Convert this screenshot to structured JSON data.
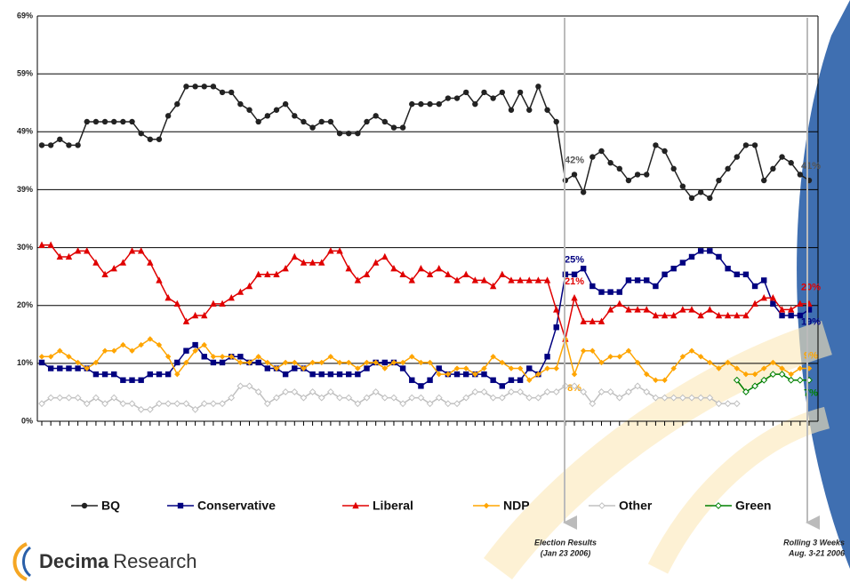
{
  "chart_data": {
    "type": "line",
    "categories": [
      null,
      null,
      null,
      null,
      null,
      null,
      null,
      null,
      null,
      null,
      null,
      null,
      null,
      null,
      null,
      null,
      null,
      null,
      null,
      null,
      null,
      null,
      null,
      null,
      null,
      null,
      null,
      null,
      null,
      null,
      null,
      null,
      null,
      null,
      null,
      null,
      null,
      null,
      null,
      null,
      null,
      null,
      null,
      null,
      null,
      null,
      null,
      null,
      null,
      null,
      null,
      null,
      null,
      null,
      null,
      null,
      null,
      null,
      null,
      null,
      null,
      null,
      null,
      null,
      null,
      null,
      null,
      null,
      null,
      null,
      null,
      null,
      null,
      null,
      null,
      null,
      null,
      null,
      null,
      null,
      null,
      null,
      null,
      null,
      null,
      null
    ],
    "ylim": [
      0,
      69
    ],
    "yticks": [
      {
        "value": 0,
        "label": "0%"
      },
      {
        "value": 9.857,
        "label": "10%"
      },
      {
        "value": 19.714,
        "label": "20%"
      },
      {
        "value": 29.571,
        "label": "30%"
      },
      {
        "value": 39.429,
        "label": "39%"
      },
      {
        "value": 49.286,
        "label": "49%"
      },
      {
        "value": 59.143,
        "label": "59%"
      },
      {
        "value": 69,
        "label": "69%"
      }
    ],
    "grid": true,
    "series": [
      {
        "name": "BQ",
        "color": "#222222",
        "marker": "circle",
        "values": [
          47,
          47,
          48,
          47,
          47,
          51,
          51,
          51,
          51,
          51,
          51,
          49,
          48,
          48,
          52,
          54,
          57,
          57,
          57,
          57,
          56,
          56,
          54,
          53,
          51,
          52,
          53,
          54,
          52,
          51,
          50,
          51,
          51,
          49,
          49,
          49,
          51,
          52,
          51,
          50,
          50,
          54,
          54,
          54,
          54,
          55,
          55,
          56,
          54,
          56,
          55,
          56,
          53,
          56,
          53,
          57,
          53,
          51,
          41,
          42,
          39,
          45,
          46,
          44,
          43,
          41,
          42,
          42,
          47,
          46,
          43,
          40,
          38,
          39,
          38,
          41,
          43,
          45,
          47,
          47,
          41,
          43,
          45,
          44,
          42,
          41
        ],
        "value_labels": [
          null,
          null,
          null,
          null,
          null,
          null,
          null,
          null,
          null,
          null,
          null,
          null,
          null,
          null,
          null,
          null,
          null,
          null,
          null,
          null,
          null,
          null,
          null,
          null,
          null,
          null,
          null,
          null,
          null,
          null,
          null,
          null,
          null,
          null,
          null,
          null,
          null,
          null,
          null,
          null,
          null,
          null,
          null,
          null,
          null,
          null,
          null,
          null,
          null,
          null,
          null,
          null,
          null,
          null,
          null,
          null,
          null,
          null,
          null,
          "42%",
          null,
          null,
          null,
          null,
          null,
          null,
          null,
          null,
          null,
          null,
          null,
          null,
          null,
          null,
          null,
          null,
          null,
          null,
          null,
          null,
          null,
          null,
          null,
          null,
          null,
          "41%"
        ]
      },
      {
        "name": "Conservative",
        "color": "#000080",
        "marker": "square",
        "values": [
          10,
          9,
          9,
          9,
          9,
          9,
          8,
          8,
          8,
          7,
          7,
          7,
          8,
          8,
          8,
          10,
          12,
          13,
          11,
          10,
          10,
          11,
          11,
          10,
          10,
          9,
          9,
          8,
          9,
          9,
          8,
          8,
          8,
          8,
          8,
          8,
          9,
          10,
          10,
          10,
          9,
          7,
          6,
          7,
          9,
          8,
          8,
          8,
          8,
          8,
          7,
          6,
          7,
          7,
          9,
          8,
          11,
          16,
          25,
          25,
          26,
          23,
          22,
          22,
          22,
          24,
          24,
          24,
          23,
          25,
          26,
          27,
          28,
          29,
          29,
          28,
          26,
          25,
          25,
          23,
          24,
          20,
          18,
          18,
          18,
          19
        ],
        "value_labels": [
          null,
          null,
          null,
          null,
          null,
          null,
          null,
          null,
          null,
          null,
          null,
          null,
          null,
          null,
          null,
          null,
          null,
          null,
          null,
          null,
          null,
          null,
          null,
          null,
          null,
          null,
          null,
          null,
          null,
          null,
          null,
          null,
          null,
          null,
          null,
          null,
          null,
          null,
          null,
          null,
          null,
          null,
          null,
          null,
          null,
          null,
          null,
          null,
          null,
          null,
          null,
          null,
          null,
          null,
          null,
          null,
          null,
          null,
          null,
          "25%",
          null,
          null,
          null,
          null,
          null,
          null,
          null,
          null,
          null,
          null,
          null,
          null,
          null,
          null,
          null,
          null,
          null,
          null,
          null,
          null,
          null,
          null,
          null,
          null,
          null,
          "19%"
        ]
      },
      {
        "name": "Liberal",
        "color": "#e00000",
        "marker": "triangle",
        "values": [
          30,
          30,
          28,
          28,
          29,
          29,
          27,
          25,
          26,
          27,
          29,
          29,
          27,
          24,
          21,
          20,
          17,
          18,
          18,
          20,
          20,
          21,
          22,
          23,
          25,
          25,
          25,
          26,
          28,
          27,
          27,
          27,
          29,
          29,
          26,
          24,
          25,
          27,
          28,
          26,
          25,
          24,
          26,
          25,
          26,
          25,
          24,
          25,
          24,
          24,
          23,
          25,
          24,
          24,
          24,
          24,
          24,
          19,
          14,
          21,
          17,
          17,
          17,
          19,
          20,
          19,
          19,
          19,
          18,
          18,
          18,
          19,
          19,
          18,
          19,
          18,
          18,
          18,
          18,
          20,
          21,
          21,
          19,
          19,
          20,
          20
        ],
        "value_labels": [
          null,
          null,
          null,
          null,
          null,
          null,
          null,
          null,
          null,
          null,
          null,
          null,
          null,
          null,
          null,
          null,
          null,
          null,
          null,
          null,
          null,
          null,
          null,
          null,
          null,
          null,
          null,
          null,
          null,
          null,
          null,
          null,
          null,
          null,
          null,
          null,
          null,
          null,
          null,
          null,
          null,
          null,
          null,
          null,
          null,
          null,
          null,
          null,
          null,
          null,
          null,
          null,
          null,
          null,
          null,
          null,
          null,
          null,
          null,
          "21%",
          null,
          null,
          null,
          null,
          null,
          null,
          null,
          null,
          null,
          null,
          null,
          null,
          null,
          null,
          null,
          null,
          null,
          null,
          null,
          null,
          null,
          null,
          null,
          null,
          null,
          "20%"
        ]
      },
      {
        "name": "NDP",
        "color": "#ffa500",
        "marker": "diamond",
        "values": [
          11,
          11,
          12,
          11,
          10,
          9,
          10,
          12,
          12,
          13,
          12,
          13,
          14,
          13,
          11,
          8,
          10,
          12,
          13,
          11,
          11,
          11,
          10,
          10,
          11,
          10,
          9,
          10,
          10,
          9,
          10,
          10,
          11,
          10,
          10,
          9,
          10,
          10,
          9,
          10,
          10,
          11,
          10,
          10,
          8,
          8,
          9,
          9,
          8,
          9,
          11,
          10,
          9,
          9,
          7,
          8,
          9,
          9,
          14,
          8,
          12,
          12,
          10,
          11,
          11,
          12,
          10,
          8,
          7,
          7,
          9,
          11,
          12,
          11,
          10,
          9,
          10,
          9,
          8,
          8,
          9,
          10,
          9,
          8,
          9,
          9
        ],
        "value_labels": [
          null,
          null,
          null,
          null,
          null,
          null,
          null,
          null,
          null,
          null,
          null,
          null,
          null,
          null,
          null,
          null,
          null,
          null,
          null,
          null,
          null,
          null,
          null,
          null,
          null,
          null,
          null,
          null,
          null,
          null,
          null,
          null,
          null,
          null,
          null,
          null,
          null,
          null,
          null,
          null,
          null,
          null,
          null,
          null,
          null,
          null,
          null,
          null,
          null,
          null,
          null,
          null,
          null,
          null,
          null,
          null,
          null,
          null,
          null,
          "8%",
          null,
          null,
          null,
          null,
          null,
          null,
          null,
          null,
          null,
          null,
          null,
          null,
          null,
          null,
          null,
          null,
          null,
          null,
          null,
          null,
          null,
          null,
          null,
          null,
          null,
          "9%"
        ]
      },
      {
        "name": "Other",
        "color": "#c0c0c0",
        "marker": "hollow-diamond",
        "values": [
          3,
          4,
          4,
          4,
          4,
          3,
          4,
          3,
          4,
          3,
          3,
          2,
          2,
          3,
          3,
          3,
          3,
          2,
          3,
          3,
          3,
          4,
          6,
          6,
          5,
          3,
          4,
          5,
          5,
          4,
          5,
          4,
          5,
          4,
          4,
          3,
          4,
          5,
          4,
          4,
          3,
          4,
          4,
          3,
          4,
          3,
          3,
          4,
          5,
          5,
          4,
          4,
          5,
          5,
          4,
          4,
          5,
          5,
          6,
          6,
          5,
          3,
          5,
          5,
          4,
          5,
          6,
          5,
          4,
          4,
          4,
          4,
          4,
          4,
          4,
          3,
          3,
          3,
          null,
          null,
          null,
          null,
          null,
          null,
          null,
          null
        ]
      },
      {
        "name": "Green",
        "color": "#008000",
        "marker": "hollow-diamond",
        "values": [
          null,
          null,
          null,
          null,
          null,
          null,
          null,
          null,
          null,
          null,
          null,
          null,
          null,
          null,
          null,
          null,
          null,
          null,
          null,
          null,
          null,
          null,
          null,
          null,
          null,
          null,
          null,
          null,
          null,
          null,
          null,
          null,
          null,
          null,
          null,
          null,
          null,
          null,
          null,
          null,
          null,
          null,
          null,
          null,
          null,
          null,
          null,
          null,
          null,
          null,
          null,
          null,
          null,
          null,
          null,
          null,
          null,
          null,
          null,
          null,
          null,
          null,
          null,
          null,
          null,
          null,
          null,
          null,
          null,
          null,
          null,
          null,
          null,
          null,
          null,
          null,
          null,
          7,
          5,
          6,
          7,
          8,
          8,
          7,
          7,
          7
        ],
        "value_labels": [
          null,
          null,
          null,
          null,
          null,
          null,
          null,
          null,
          null,
          null,
          null,
          null,
          null,
          null,
          null,
          null,
          null,
          null,
          null,
          null,
          null,
          null,
          null,
          null,
          null,
          null,
          null,
          null,
          null,
          null,
          null,
          null,
          null,
          null,
          null,
          null,
          null,
          null,
          null,
          null,
          null,
          null,
          null,
          null,
          null,
          null,
          null,
          null,
          null,
          null,
          null,
          null,
          null,
          null,
          null,
          null,
          null,
          null,
          null,
          null,
          null,
          null,
          null,
          null,
          null,
          null,
          null,
          null,
          null,
          null,
          null,
          null,
          null,
          null,
          null,
          null,
          null,
          null,
          null,
          null,
          null,
          null,
          null,
          null,
          null,
          "7%"
        ]
      }
    ],
    "annotations": [
      [
        "Election Results",
        "(Jan 23 2006)"
      ],
      [
        "Rolling 3 Weeks",
        "Aug. 3-21 2006"
      ]
    ],
    "logo": {
      "brand": "Decima",
      "suffix": "Research"
    }
  }
}
